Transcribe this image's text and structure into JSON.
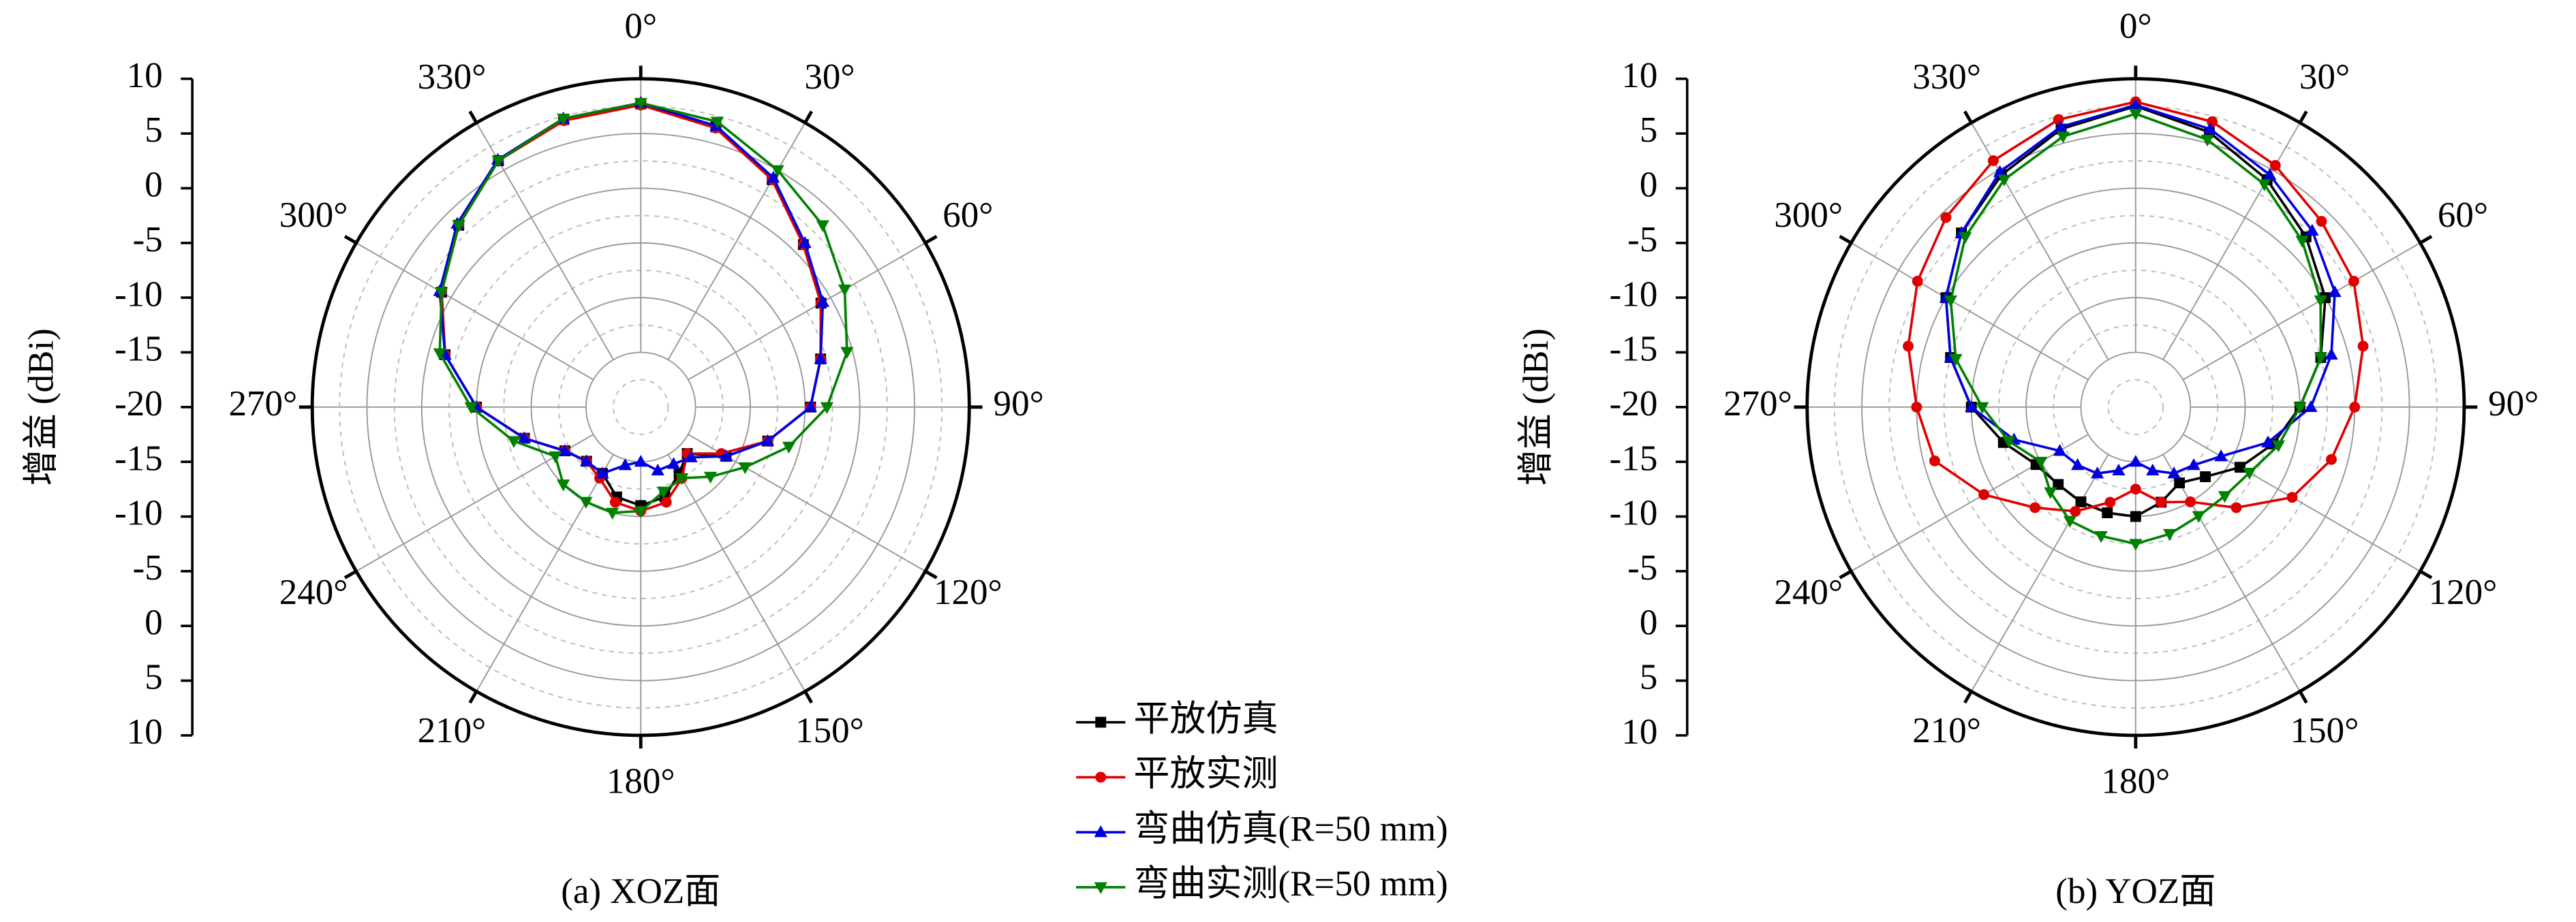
{
  "chart_data": [
    {
      "type": "polar",
      "title": "(a) XOZ面",
      "ylabel": "增益 (dBi)",
      "grid": true,
      "rlim": [
        -20,
        10
      ],
      "rticks": [
        10,
        5,
        0,
        -5,
        -10,
        -15,
        -20
      ],
      "x": [
        0,
        15,
        30,
        45,
        60,
        75,
        90,
        105,
        120,
        135,
        150,
        165,
        180,
        195,
        210,
        225,
        240,
        255,
        270,
        285,
        300,
        315,
        330,
        345
      ],
      "xticks": [
        {
          "value": 0,
          "label": "0°"
        },
        {
          "value": 30,
          "label": "30°"
        },
        {
          "value": 60,
          "label": "60°"
        },
        {
          "value": 90,
          "label": "90°"
        },
        {
          "value": 120,
          "label": "120°"
        },
        {
          "value": 150,
          "label": "150°"
        },
        {
          "value": 180,
          "label": "180°"
        },
        {
          "value": 210,
          "label": "210°"
        },
        {
          "value": 240,
          "label": "240°"
        },
        {
          "value": 270,
          "label": "270°"
        },
        {
          "value": 300,
          "label": "300°"
        },
        {
          "value": 330,
          "label": "330°"
        }
      ],
      "series": [
        {
          "name": "平放仿真",
          "color": "#000000",
          "marker": "square",
          "values": [
            7.7,
            6.5,
            4,
            1,
            -1,
            -3,
            -4.5,
            -8,
            -11,
            -14,
            -13,
            -11.5,
            -11,
            -11.5,
            -13,
            -13,
            -12,
            -9,
            -5,
            -1.5,
            1,
            3.5,
            6,
            7.2
          ]
        },
        {
          "name": "平放实测",
          "color": "#e00000",
          "marker": "circle",
          "values": [
            7.6,
            6.4,
            4,
            1,
            -1,
            -3,
            -4.5,
            -8,
            -11.5,
            -14,
            -12.5,
            -11,
            -10.5,
            -11,
            -12.5,
            -13,
            -12,
            -9,
            -5,
            -1.5,
            1,
            3.5,
            6,
            7.1
          ]
        },
        {
          "name": "弯曲仿真(R=50 mm)",
          "color": "#0000e0",
          "marker": "triangle-up",
          "values": [
            7.8,
            6.6,
            4.2,
            1.2,
            -0.8,
            -3,
            -4.5,
            -8,
            -11,
            -13.5,
            -14,
            -14,
            -15,
            -14.5,
            -13,
            -13,
            -12,
            -9,
            -5,
            -1.5,
            1.2,
            3.7,
            6.1,
            7.3
          ]
        },
        {
          "name": "弯曲实测(R=50 mm)",
          "color": "#008000",
          "marker": "triangle-down",
          "values": [
            7.8,
            7,
            5,
            3.5,
            1.5,
            -0.5,
            -3,
            -6,
            -9,
            -11,
            -12.5,
            -12,
            -10.5,
            -10,
            -10,
            -10,
            -11,
            -8,
            -4.5,
            -1,
            1,
            3.5,
            6,
            7.3
          ]
        }
      ]
    },
    {
      "type": "polar",
      "title": "(b) YOZ面",
      "ylabel": "增益 (dBi)",
      "grid": true,
      "rlim": [
        -20,
        10
      ],
      "rticks": [
        10,
        5,
        0,
        -5,
        -10,
        -15,
        -20
      ],
      "x": [
        0,
        15,
        30,
        45,
        60,
        75,
        90,
        105,
        120,
        135,
        150,
        165,
        180,
        195,
        210,
        225,
        240,
        255,
        270,
        285,
        300,
        315,
        330,
        345
      ],
      "xticks": [
        {
          "value": 0,
          "label": "0°"
        },
        {
          "value": 30,
          "label": "30°"
        },
        {
          "value": 60,
          "label": "60°"
        },
        {
          "value": 90,
          "label": "90°"
        },
        {
          "value": 120,
          "label": "120°"
        },
        {
          "value": 150,
          "label": "150°"
        },
        {
          "value": 180,
          "label": "180°"
        },
        {
          "value": 210,
          "label": "210°"
        },
        {
          "value": 240,
          "label": "240°"
        },
        {
          "value": 270,
          "label": "270°"
        },
        {
          "value": 300,
          "label": "300°"
        },
        {
          "value": 330,
          "label": "330°"
        }
      ],
      "series": [
        {
          "name": "平放仿真",
          "color": "#000000",
          "marker": "square",
          "values": [
            7.5,
            6,
            4,
            2,
            0,
            -2.5,
            -5,
            -7,
            -9,
            -11,
            -12,
            -11,
            -10,
            -10,
            -10,
            -10,
            -9.5,
            -7.5,
            -5,
            -2.5,
            0,
            2.5,
            4.5,
            6.3
          ]
        },
        {
          "name": "平放实测",
          "color": "#e00000",
          "marker": "circle",
          "values": [
            7.9,
            7,
            5.5,
            4,
            3,
            1.5,
            0,
            -1.5,
            -3.5,
            -7,
            -10,
            -11,
            -12.5,
            -11,
            -9,
            -7,
            -4,
            -1,
            0,
            1.5,
            3,
            4.5,
            6,
            7.2
          ]
        },
        {
          "name": "弯曲仿真(R=50 mm)",
          "color": "#0000e0",
          "marker": "triangle-up",
          "values": [
            7.6,
            6.3,
            4.5,
            2.8,
            1,
            -1.5,
            -4,
            -7.5,
            -11,
            -12.5,
            -13,
            -14,
            -15,
            -14,
            -13,
            -12.5,
            -12,
            -8.5,
            -5,
            -2.5,
            0,
            2.5,
            4.8,
            6.5
          ]
        },
        {
          "name": "弯曲实测(R=50 mm)",
          "color": "#008000",
          "marker": "triangle-down",
          "values": [
            6.8,
            5.3,
            3.5,
            1.5,
            -0.5,
            -2.5,
            -5,
            -6.5,
            -8,
            -8.5,
            -8.5,
            -8,
            -7.5,
            -7.8,
            -8,
            -9,
            -10,
            -8,
            -6,
            -3,
            -0.5,
            2,
            4,
            5.6
          ]
        }
      ]
    }
  ]
}
